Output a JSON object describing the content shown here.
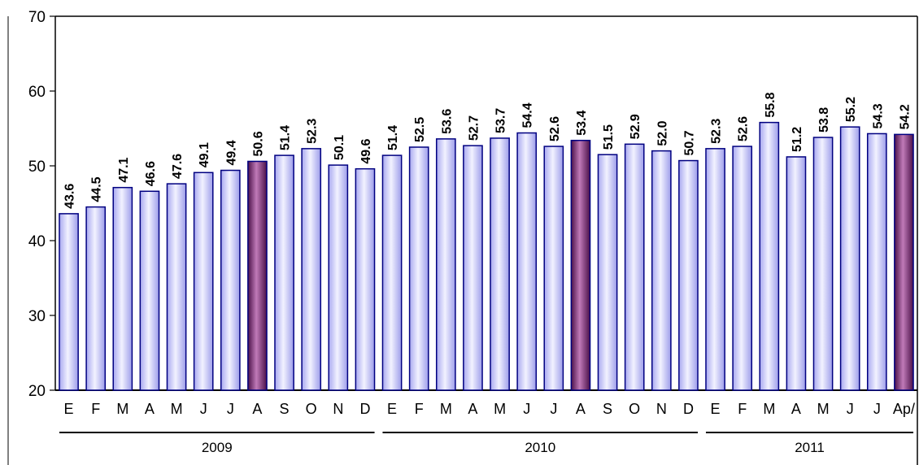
{
  "chart_data": {
    "type": "bar",
    "categories": [
      "E",
      "F",
      "M",
      "A",
      "M",
      "J",
      "J",
      "A",
      "S",
      "O",
      "N",
      "D",
      "E",
      "F",
      "M",
      "A",
      "M",
      "J",
      "J",
      "A",
      "S",
      "O",
      "N",
      "D",
      "E",
      "F",
      "M",
      "A",
      "M",
      "J",
      "J",
      "Ap/"
    ],
    "values": [
      43.6,
      44.5,
      47.1,
      46.6,
      47.6,
      49.1,
      49.4,
      50.6,
      51.4,
      52.3,
      50.1,
      49.6,
      51.4,
      52.5,
      53.6,
      52.7,
      53.7,
      54.4,
      52.6,
      53.4,
      51.5,
      52.9,
      52.0,
      50.7,
      52.3,
      52.6,
      55.8,
      51.2,
      53.8,
      55.2,
      54.3,
      54.2
    ],
    "highlighted_indices": [
      7,
      19,
      31
    ],
    "year_groups": [
      {
        "label": "2009",
        "start": 0,
        "end": 11
      },
      {
        "label": "2010",
        "start": 12,
        "end": 23
      },
      {
        "label": "2011",
        "start": 24,
        "end": 31
      }
    ],
    "ylim": [
      20,
      70
    ],
    "yticks": [
      20,
      30,
      40,
      50,
      60,
      70
    ],
    "title": "",
    "xlabel": "",
    "ylabel": "",
    "grid": false,
    "legend": "none",
    "colors": {
      "bar_light": "#ccccff",
      "bar_highlight": "#7a2f6e",
      "bar_border": "#000080",
      "axis": "#000000"
    }
  }
}
